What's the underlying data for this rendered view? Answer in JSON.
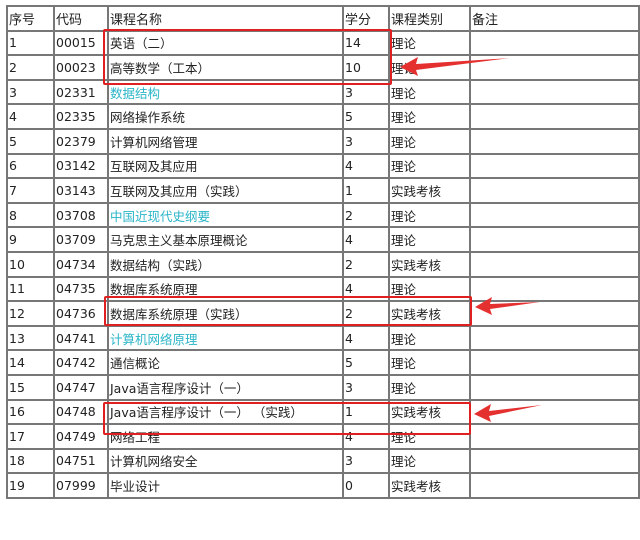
{
  "headers": {
    "no": "序号",
    "code": "代码",
    "name": "课程名称",
    "credits": "学分",
    "type": "课程类别",
    "notes": "备注"
  },
  "rows": [
    {
      "no": "1",
      "code": "00015",
      "name": "英语（二）",
      "credits": "14",
      "type": "理论",
      "notes": "",
      "link": false
    },
    {
      "no": "2",
      "code": "00023",
      "name": "高等数学（工本）",
      "credits": "10",
      "type": "理论",
      "notes": "",
      "link": false
    },
    {
      "no": "3",
      "code": "02331",
      "name": "数据结构",
      "credits": "3",
      "type": "理论",
      "notes": "",
      "link": true
    },
    {
      "no": "4",
      "code": "02335",
      "name": "网络操作系统",
      "credits": "5",
      "type": "理论",
      "notes": "",
      "link": false
    },
    {
      "no": "5",
      "code": "02379",
      "name": "计算机网络管理",
      "credits": "3",
      "type": "理论",
      "notes": "",
      "link": false
    },
    {
      "no": "6",
      "code": "03142",
      "name": "互联网及其应用",
      "credits": "4",
      "type": "理论",
      "notes": "",
      "link": false
    },
    {
      "no": "7",
      "code": "03143",
      "name": "互联网及其应用（实践）",
      "credits": "1",
      "type": "实践考核",
      "notes": "",
      "link": false
    },
    {
      "no": "8",
      "code": "03708",
      "name": "中国近现代史纲要",
      "credits": "2",
      "type": "理论",
      "notes": "",
      "link": true
    },
    {
      "no": "9",
      "code": "03709",
      "name": "马克思主义基本原理概论",
      "credits": "4",
      "type": "理论",
      "notes": "",
      "link": false
    },
    {
      "no": "10",
      "code": "04734",
      "name": "数据结构（实践）",
      "credits": "2",
      "type": "实践考核",
      "notes": "",
      "link": false
    },
    {
      "no": "11",
      "code": "04735",
      "name": "数据库系统原理",
      "credits": "4",
      "type": "理论",
      "notes": "",
      "link": false
    },
    {
      "no": "12",
      "code": "04736",
      "name": "数据库系统原理（实践）",
      "credits": "2",
      "type": "实践考核",
      "notes": "",
      "link": false
    },
    {
      "no": "13",
      "code": "04741",
      "name": "计算机网络原理",
      "credits": "4",
      "type": "理论",
      "notes": "",
      "link": true
    },
    {
      "no": "14",
      "code": "04742",
      "name": "通信概论",
      "credits": "5",
      "type": "理论",
      "notes": "",
      "link": false
    },
    {
      "no": "15",
      "code": "04747",
      "name": "Java语言程序设计（一）",
      "credits": "3",
      "type": "理论",
      "notes": "",
      "link": false
    },
    {
      "no": "16",
      "code": "04748",
      "name": "Java语言程序设计（一） （实践）",
      "credits": "1",
      "type": "实践考核",
      "notes": "",
      "link": false
    },
    {
      "no": "17",
      "code": "04749",
      "name": "网络工程",
      "credits": "4",
      "type": "理论",
      "notes": "",
      "link": false
    },
    {
      "no": "18",
      "code": "04751",
      "name": "计算机网络安全",
      "credits": "3",
      "type": "理论",
      "notes": "",
      "link": false
    },
    {
      "no": "19",
      "code": "07999",
      "name": "毕业设计",
      "credits": "0",
      "type": "实践考核",
      "notes": "",
      "link": false
    }
  ],
  "colors": {
    "link": "#2bb5c8",
    "highlight": "#e02020",
    "border": "#777777"
  }
}
